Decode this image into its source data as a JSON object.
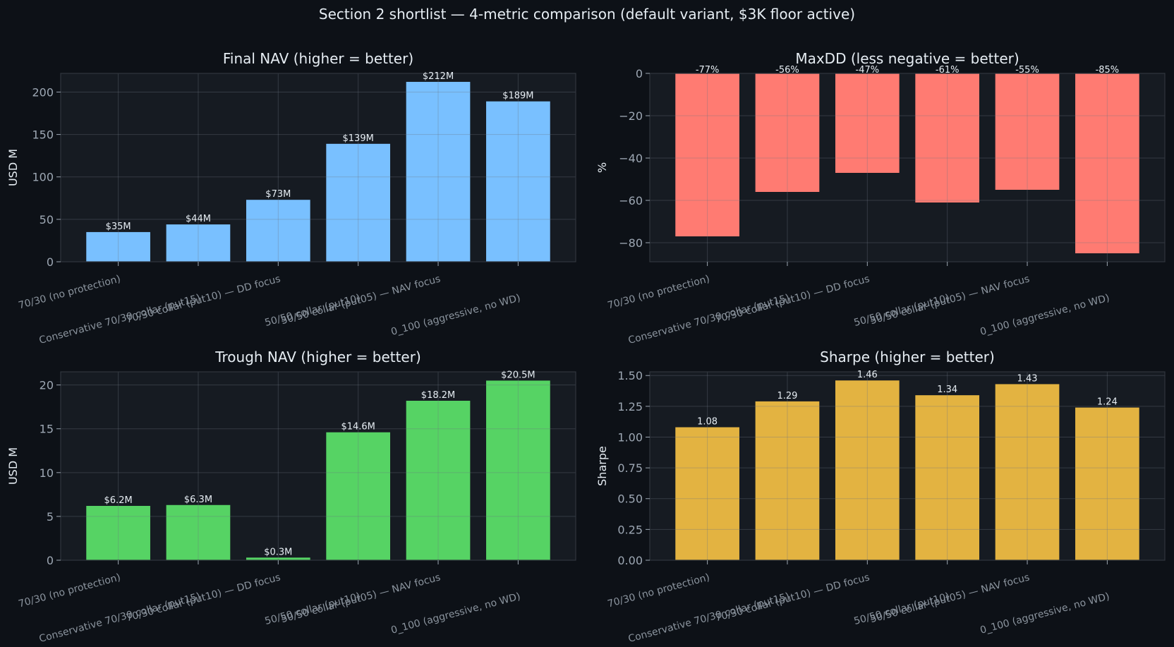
{
  "title": "Section 2 shortlist — 4-metric comparison (default variant, $3K floor active)",
  "categories": [
    "70/30 (no protection)",
    "Conservative 70/30 collar (put15)",
    "70/30 collar (put10) — DD focus",
    "50/50 collar (put10)",
    "50/50 collar (put05) — NAV focus",
    "0_100 (aggressive, no WD)"
  ],
  "chart_data": [
    {
      "type": "bar",
      "title": "Final NAV (higher = better)",
      "xlabel": "",
      "ylabel": "USD M",
      "ylim": [
        0,
        222
      ],
      "yticks": [
        0,
        50,
        100,
        150,
        200
      ],
      "ytick_labels": [
        "0",
        "50",
        "100",
        "150",
        "200"
      ],
      "values": [
        35,
        44,
        73,
        139,
        212,
        189
      ],
      "value_labels": [
        "$35M",
        "$44M",
        "$73M",
        "$139M",
        "$212M",
        "$189M"
      ],
      "color": "#79c0ff",
      "grid": true
    },
    {
      "type": "bar",
      "title": "MaxDD (less negative = better)",
      "xlabel": "",
      "ylabel": "%",
      "ylim": [
        -89,
        0
      ],
      "yticks": [
        0,
        -20,
        -40,
        -60,
        -80
      ],
      "ytick_labels": [
        "0",
        "−20",
        "−40",
        "−60",
        "−80"
      ],
      "values": [
        -77,
        -56,
        -47,
        -61,
        -55,
        -85
      ],
      "value_labels": [
        "-77%",
        "-56%",
        "-47%",
        "-61%",
        "-55%",
        "-85%"
      ],
      "color": "#ff7b72",
      "grid": true
    },
    {
      "type": "bar",
      "title": "Trough NAV (higher = better)",
      "xlabel": "",
      "ylabel": "USD M",
      "ylim": [
        0,
        21.5
      ],
      "yticks": [
        0,
        5,
        10,
        15,
        20
      ],
      "ytick_labels": [
        "0",
        "5",
        "10",
        "15",
        "20"
      ],
      "values": [
        6.2,
        6.3,
        0.3,
        14.6,
        18.2,
        20.5
      ],
      "value_labels": [
        "$6.2M",
        "$6.3M",
        "$0.3M",
        "$14.6M",
        "$18.2M",
        "$20.5M"
      ],
      "color": "#56d364",
      "grid": true
    },
    {
      "type": "bar",
      "title": "Sharpe (higher = better)",
      "xlabel": "",
      "ylabel": "Sharpe",
      "ylim": [
        0,
        1.53
      ],
      "yticks": [
        0,
        0.25,
        0.5,
        0.75,
        1.0,
        1.25,
        1.5
      ],
      "ytick_labels": [
        "0.00",
        "0.25",
        "0.50",
        "0.75",
        "1.00",
        "1.25",
        "1.50"
      ],
      "values": [
        1.08,
        1.29,
        1.46,
        1.34,
        1.43,
        1.24
      ],
      "value_labels": [
        "1.08",
        "1.29",
        "1.46",
        "1.34",
        "1.43",
        "1.24"
      ],
      "color": "#e3b341",
      "grid": true
    }
  ],
  "colors": {
    "background": "#0d1117",
    "panel": "#161b22",
    "grid": "#30363d",
    "text": "#e6edf3",
    "tick_text": "#9da7b3",
    "category_text": "#8b949e"
  }
}
